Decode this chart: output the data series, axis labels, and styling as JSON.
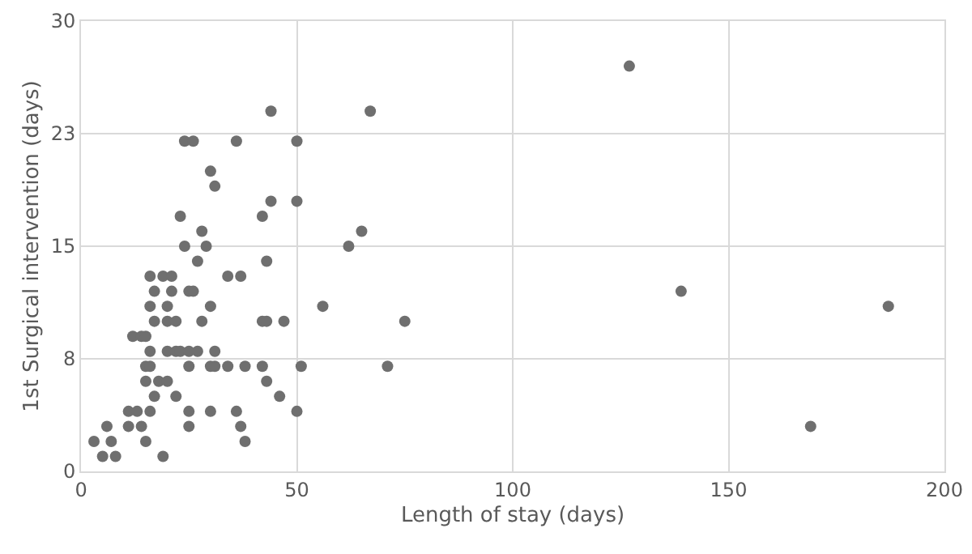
{
  "chart_data": {
    "type": "scatter",
    "xlabel": "Length of stay (days)",
    "ylabel": "1st Surgical intervention (days)",
    "xlim": [
      0,
      200
    ],
    "xticks": [
      0,
      50,
      100,
      150,
      200
    ],
    "ylim": [
      0,
      30
    ],
    "yticks": [
      0,
      {
        "value": 7.5,
        "label": "8"
      },
      15,
      {
        "value": 22.5,
        "label": "23"
      },
      30
    ],
    "grid": true,
    "marker": "circle",
    "legend": false,
    "series": [
      {
        "color": "#6f6f6f",
        "x": [
          44,
          67,
          24,
          26,
          36,
          50,
          30,
          31,
          44,
          50,
          23,
          42,
          28,
          65,
          24,
          29,
          62,
          27,
          43,
          16,
          19,
          21,
          34,
          37,
          17,
          21,
          25,
          26,
          16,
          20,
          30,
          56,
          17,
          20,
          22,
          28,
          42,
          43,
          47,
          12,
          14,
          15,
          16,
          20,
          22,
          23,
          25,
          27,
          31,
          15,
          16,
          25,
          30,
          31,
          34,
          38,
          42,
          51,
          71,
          15,
          18,
          20,
          43,
          17,
          22,
          46,
          11,
          13,
          16,
          25,
          30,
          36,
          50,
          6,
          11,
          14,
          25,
          37,
          3,
          7,
          15,
          38,
          5,
          8,
          19,
          127,
          139,
          169,
          187,
          75
        ],
        "values": [
          24,
          24,
          22,
          22,
          22,
          22,
          20,
          19,
          18,
          18,
          17,
          17,
          16,
          16,
          15,
          15,
          15,
          14,
          14,
          13,
          13,
          13,
          13,
          13,
          12,
          12,
          12,
          12,
          11,
          11,
          11,
          11,
          10,
          10,
          10,
          10,
          10,
          10,
          10,
          9,
          9,
          9,
          8,
          8,
          8,
          8,
          8,
          8,
          8,
          7,
          7,
          7,
          7,
          7,
          7,
          7,
          7,
          7,
          7,
          6,
          6,
          6,
          6,
          5,
          5,
          5,
          4,
          4,
          4,
          4,
          4,
          4,
          4,
          3,
          3,
          3,
          3,
          3,
          2,
          2,
          2,
          2,
          1,
          1,
          1,
          27,
          12,
          3,
          11,
          10
        ]
      }
    ]
  }
}
